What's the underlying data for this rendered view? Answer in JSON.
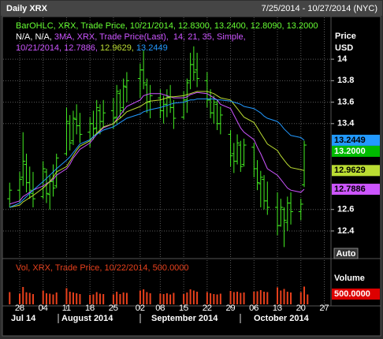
{
  "chart_data": [
    {
      "type": "ohlc",
      "title": "Daily XRX",
      "subtitle": "7/25/2014 - 10/27/2014 (NYC)",
      "legend_lines": [
        [
          {
            "text": "BarOHLC, XRX, Trade Price, 10/21/2014, 12.8300, 13.2400, 12.8090, 13.2000",
            "color": "#66ff33"
          }
        ],
        [
          {
            "text": "N/A, N/A, ",
            "color": "#ffffff"
          },
          {
            "text": "3MA, XRX, Trade Price(Last),  14, 21, 35, Simple,",
            "color": "#cc55ff"
          }
        ],
        [
          {
            "text": "10/21/2014, 12.7886, ",
            "color": "#cc55ff"
          },
          {
            "text": "12.9629, ",
            "color": "#bbdd33"
          },
          {
            "text": "13.2449",
            "color": "#2299ff"
          }
        ]
      ],
      "y_label": "Price",
      "y_unit": "USD",
      "auto_label": "Auto",
      "color": "#44ee22",
      "x": [
        "2014-07-25",
        "2014-07-28",
        "2014-07-29",
        "2014-07-30",
        "2014-07-31",
        "2014-08-01",
        "2014-08-04",
        "2014-08-05",
        "2014-08-06",
        "2014-08-07",
        "2014-08-08",
        "2014-08-11",
        "2014-08-12",
        "2014-08-13",
        "2014-08-14",
        "2014-08-15",
        "2014-08-18",
        "2014-08-19",
        "2014-08-20",
        "2014-08-21",
        "2014-08-22",
        "2014-08-25",
        "2014-08-26",
        "2014-08-27",
        "2014-08-28",
        "2014-08-29",
        "2014-09-02",
        "2014-09-03",
        "2014-09-04",
        "2014-09-05",
        "2014-09-08",
        "2014-09-09",
        "2014-09-10",
        "2014-09-11",
        "2014-09-12",
        "2014-09-15",
        "2014-09-16",
        "2014-09-17",
        "2014-09-18",
        "2014-09-19",
        "2014-09-22",
        "2014-09-23",
        "2014-09-24",
        "2014-09-25",
        "2014-09-26",
        "2014-09-29",
        "2014-09-30",
        "2014-10-01",
        "2014-10-02",
        "2014-10-03",
        "2014-10-06",
        "2014-10-07",
        "2014-10-08",
        "2014-10-09",
        "2014-10-10",
        "2014-10-13",
        "2014-10-14",
        "2014-10-15",
        "2014-10-16",
        "2014-10-17",
        "2014-10-20",
        "2014-10-21"
      ],
      "open": [
        12.7,
        12.78,
        12.9,
        13.02,
        12.85,
        12.75,
        12.72,
        12.95,
        12.74,
        12.86,
        12.82,
        13.12,
        13.4,
        13.24,
        13.44,
        13.38,
        13.32,
        13.4,
        13.36,
        13.52,
        13.42,
        13.52,
        13.46,
        13.68,
        13.55,
        13.74,
        13.82,
        13.9,
        13.76,
        13.6,
        13.64,
        13.52,
        13.58,
        13.64,
        13.55,
        13.46,
        13.62,
        13.8,
        13.95,
        13.9,
        13.8,
        13.62,
        13.5,
        13.58,
        13.4,
        13.3,
        13.12,
        13.05,
        13.2,
        13.02,
        13.18,
        12.98,
        12.84,
        12.88,
        12.68,
        12.62,
        12.45,
        12.6,
        12.48,
        12.66,
        12.58,
        12.83
      ],
      "high": [
        12.85,
        12.95,
        13.32,
        13.12,
        13.0,
        12.95,
        13.05,
        12.98,
        12.92,
        13.02,
        13.12,
        13.55,
        13.48,
        13.52,
        13.58,
        13.5,
        13.46,
        13.52,
        13.62,
        13.58,
        13.62,
        13.64,
        13.76,
        13.72,
        13.82,
        13.88,
        13.96,
        14.08,
        13.82,
        13.76,
        13.72,
        13.66,
        13.72,
        13.76,
        13.62,
        13.7,
        13.82,
        14.06,
        14.12,
        14.06,
        13.88,
        13.72,
        13.66,
        13.62,
        13.56,
        13.34,
        13.22,
        13.3,
        13.24,
        13.26,
        13.22,
        13.06,
        12.96,
        12.92,
        12.86,
        12.76,
        12.7,
        12.62,
        12.72,
        12.76,
        12.7,
        13.24
      ],
      "low": [
        12.62,
        12.66,
        12.82,
        12.76,
        12.7,
        12.62,
        12.7,
        12.66,
        12.6,
        12.72,
        12.8,
        13.1,
        13.15,
        13.2,
        13.3,
        13.22,
        13.18,
        13.25,
        13.3,
        13.3,
        13.36,
        13.35,
        13.4,
        13.45,
        13.5,
        13.6,
        13.64,
        13.72,
        13.5,
        13.45,
        13.45,
        13.4,
        13.46,
        13.5,
        13.35,
        13.44,
        13.5,
        13.72,
        13.8,
        13.74,
        13.55,
        13.45,
        13.4,
        13.34,
        13.3,
        13.0,
        12.94,
        13.02,
        12.95,
        13.0,
        12.9,
        12.78,
        12.62,
        12.6,
        12.55,
        12.36,
        12.44,
        12.25,
        12.4,
        12.46,
        12.5,
        12.809
      ],
      "close": [
        12.78,
        12.88,
        13.05,
        12.85,
        12.78,
        12.7,
        12.98,
        12.75,
        12.86,
        12.8,
        13.08,
        13.42,
        13.22,
        13.45,
        13.38,
        13.3,
        13.4,
        13.35,
        13.55,
        13.42,
        13.5,
        13.45,
        13.7,
        13.52,
        13.75,
        13.8,
        13.9,
        13.78,
        13.6,
        13.66,
        13.52,
        13.58,
        13.65,
        13.55,
        13.45,
        13.62,
        13.78,
        13.95,
        13.88,
        13.82,
        13.62,
        13.5,
        13.6,
        13.4,
        13.48,
        13.1,
        13.05,
        13.22,
        13.0,
        13.2,
        12.98,
        12.85,
        12.9,
        12.68,
        12.62,
        12.45,
        12.62,
        12.5,
        12.66,
        12.58,
        12.65,
        13.2
      ],
      "close_label": "13.2000",
      "close_box_color": "#00bb00",
      "series": [
        {
          "color": "#cc55ff",
          "last_label": "12.7886",
          "values": [
            12.65,
            12.68,
            12.72,
            12.74,
            12.76,
            12.78,
            12.82,
            12.84,
            12.86,
            12.88,
            12.92,
            12.98,
            13.02,
            13.08,
            13.12,
            13.16,
            13.22,
            13.26,
            13.3,
            13.33,
            13.36,
            13.4,
            13.44,
            13.48,
            13.52,
            13.56,
            13.62,
            13.66,
            13.67,
            13.68,
            13.68,
            13.67,
            13.66,
            13.65,
            13.64,
            13.64,
            13.65,
            13.67,
            13.68,
            13.69,
            13.68,
            13.66,
            13.64,
            13.62,
            13.58,
            13.54,
            13.48,
            13.42,
            13.36,
            13.32,
            13.25,
            13.18,
            13.12,
            13.05,
            12.98,
            12.92,
            12.88,
            12.84,
            12.8,
            12.78,
            12.76,
            12.7886
          ]
        },
        {
          "color": "#bbdd33",
          "last_label": "12.9629",
          "values": [
            12.62,
            12.64,
            12.67,
            12.69,
            12.71,
            12.73,
            12.8,
            12.83,
            12.86,
            12.9,
            12.95,
            13.0,
            13.05,
            13.1,
            13.15,
            13.19,
            13.24,
            13.28,
            13.31,
            13.34,
            13.37,
            13.4,
            13.43,
            13.45,
            13.48,
            13.51,
            13.56,
            13.58,
            13.6,
            13.61,
            13.62,
            13.63,
            13.64,
            13.65,
            13.65,
            13.66,
            13.67,
            13.68,
            13.69,
            13.7,
            13.7,
            13.69,
            13.68,
            13.66,
            13.64,
            13.62,
            13.58,
            13.54,
            13.5,
            13.46,
            13.41,
            13.36,
            13.31,
            13.26,
            13.21,
            13.15,
            13.1,
            13.06,
            13.02,
            12.99,
            12.97,
            12.9629
          ]
        },
        {
          "color": "#2299ff",
          "last_label": "13.2449",
          "values": [
            12.62,
            12.66,
            12.69,
            12.72,
            12.75,
            12.78,
            12.86,
            12.89,
            12.92,
            12.95,
            12.98,
            13.06,
            13.09,
            13.13,
            13.17,
            13.21,
            13.25,
            13.28,
            13.3,
            13.32,
            13.34,
            13.37,
            13.39,
            13.41,
            13.43,
            13.45,
            13.49,
            13.51,
            13.52,
            13.53,
            13.55,
            13.56,
            13.57,
            13.58,
            13.59,
            13.6,
            13.61,
            13.62,
            13.62,
            13.63,
            13.63,
            13.63,
            13.63,
            13.62,
            13.62,
            13.61,
            13.6,
            13.59,
            13.58,
            13.56,
            13.54,
            13.52,
            13.5,
            13.47,
            13.45,
            13.42,
            13.39,
            13.35,
            13.32,
            13.29,
            13.27,
            13.2449
          ]
        }
      ],
      "xlim": [
        "2014-07-24",
        "2014-10-29"
      ],
      "xticks": [
        {
          "value": "2014-07-28",
          "label": "28"
        },
        {
          "value": "2014-08-04",
          "label": "04"
        },
        {
          "value": "2014-08-11",
          "label": "11"
        },
        {
          "value": "2014-08-18",
          "label": "18"
        },
        {
          "value": "2014-08-25",
          "label": "25"
        },
        {
          "value": "2014-09-02",
          "label": "02"
        },
        {
          "value": "2014-09-08",
          "label": "08"
        },
        {
          "value": "2014-09-15",
          "label": "15"
        },
        {
          "value": "2014-09-22",
          "label": "22"
        },
        {
          "value": "2014-09-29",
          "label": "29"
        },
        {
          "value": "2014-10-06",
          "label": "06"
        },
        {
          "value": "2014-10-13",
          "label": "13"
        },
        {
          "value": "2014-10-20",
          "label": "20"
        },
        {
          "value": "2014-10-27",
          "label": "27"
        }
      ],
      "months": [
        "Jul 14",
        "August 2014",
        "September 2014",
        "October 2014"
      ],
      "ylim": [
        12.15,
        14.39
      ],
      "yticks": [
        12.4,
        12.6,
        13.4,
        13.6,
        13.8,
        14
      ],
      "grid": true
    },
    {
      "type": "bar",
      "title": "Vol, XRX, Trade Price, 10/22/2014, 500.0000",
      "y_label": "Volume",
      "color": "#e8401c",
      "last_label": "500.0000",
      "last_box_color": "#dd0000",
      "x": [
        "2014-07-25",
        "2014-07-28",
        "2014-07-29",
        "2014-07-30",
        "2014-07-31",
        "2014-08-01",
        "2014-08-04",
        "2014-08-05",
        "2014-08-06",
        "2014-08-07",
        "2014-08-08",
        "2014-08-11",
        "2014-08-12",
        "2014-08-13",
        "2014-08-14",
        "2014-08-15",
        "2014-08-18",
        "2014-08-19",
        "2014-08-20",
        "2014-08-21",
        "2014-08-22",
        "2014-08-25",
        "2014-08-26",
        "2014-08-27",
        "2014-08-28",
        "2014-08-29",
        "2014-09-02",
        "2014-09-03",
        "2014-09-04",
        "2014-09-05",
        "2014-09-08",
        "2014-09-09",
        "2014-09-10",
        "2014-09-11",
        "2014-09-12",
        "2014-09-15",
        "2014-09-16",
        "2014-09-17",
        "2014-09-18",
        "2014-09-19",
        "2014-09-22",
        "2014-09-23",
        "2014-09-24",
        "2014-09-25",
        "2014-09-26",
        "2014-09-29",
        "2014-09-30",
        "2014-10-01",
        "2014-10-02",
        "2014-10-03",
        "2014-10-06",
        "2014-10-07",
        "2014-10-08",
        "2014-10-09",
        "2014-10-10",
        "2014-10-13",
        "2014-10-14",
        "2014-10-15",
        "2014-10-16",
        "2014-10-17",
        "2014-10-20",
        "2014-10-21",
        "2014-10-22"
      ],
      "values": [
        620,
        540,
        880,
        610,
        580,
        520,
        700,
        560,
        540,
        500,
        600,
        820,
        640,
        600,
        560,
        520,
        480,
        500,
        620,
        540,
        520,
        500,
        640,
        520,
        600,
        580,
        700,
        760,
        620,
        560,
        540,
        520,
        560,
        500,
        580,
        520,
        600,
        760,
        700,
        640,
        620,
        560,
        520,
        500,
        540,
        680,
        620,
        640,
        580,
        600,
        640,
        660,
        720,
        640,
        620,
        860,
        700,
        780,
        640,
        600,
        620,
        900,
        500
      ],
      "ylim": [
        0,
        2000
      ]
    }
  ]
}
